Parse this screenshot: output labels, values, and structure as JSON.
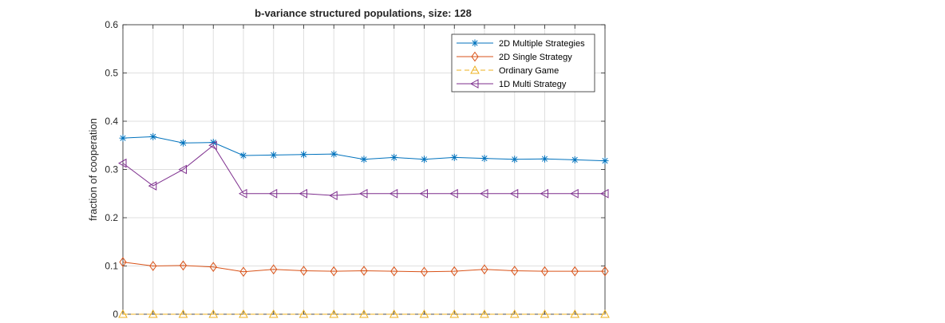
{
  "chart_data": {
    "type": "line",
    "title": "b-variance structured populations, size: 128",
    "xlabel": "",
    "ylabel": "fraction of cooperation",
    "x": [
      1,
      2,
      3,
      4,
      5,
      6,
      7,
      8,
      9,
      10,
      11,
      12,
      13,
      14,
      15,
      16,
      17
    ],
    "xlim": [
      1,
      17
    ],
    "ylim": [
      0,
      0.6
    ],
    "yticks": [
      0,
      0.1,
      0.2,
      0.3,
      0.4,
      0.5,
      0.6
    ],
    "ytick_labels": [
      "0",
      "0.1",
      "0.2",
      "0.3",
      "0.4",
      "0.5",
      "0.6"
    ],
    "grid": true,
    "legend_position": "top-right",
    "series": [
      {
        "name": "2D Multiple Strategies",
        "color": "#0072BD",
        "marker": "asterisk",
        "dash": "solid",
        "values": [
          0.365,
          0.368,
          0.355,
          0.356,
          0.329,
          0.33,
          0.331,
          0.332,
          0.321,
          0.325,
          0.321,
          0.325,
          0.323,
          0.321,
          0.322,
          0.32,
          0.318
        ]
      },
      {
        "name": "2D Single Strategy",
        "color": "#D95319",
        "marker": "diamond",
        "dash": "solid",
        "values": [
          0.108,
          0.1,
          0.101,
          0.098,
          0.088,
          0.093,
          0.09,
          0.089,
          0.09,
          0.089,
          0.088,
          0.089,
          0.093,
          0.09,
          0.089,
          0.089,
          0.089
        ]
      },
      {
        "name": "Ordinary Game",
        "color": "#EDB120",
        "marker": "triangle-up",
        "dash": "dashed",
        "values": [
          0,
          0,
          0,
          0,
          0,
          0,
          0,
          0,
          0,
          0,
          0,
          0,
          0,
          0,
          0,
          0,
          0
        ]
      },
      {
        "name": "1D Multi Strategy",
        "color": "#7E2F8E",
        "marker": "triangle-left",
        "dash": "solid",
        "values": [
          0.313,
          0.266,
          0.3,
          0.35,
          0.25,
          0.25,
          0.25,
          0.246,
          0.25,
          0.25,
          0.25,
          0.25,
          0.25,
          0.25,
          0.25,
          0.25,
          0.25
        ]
      }
    ]
  }
}
